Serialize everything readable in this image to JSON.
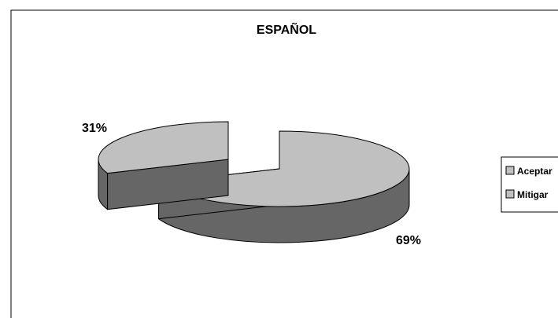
{
  "chart_data": {
    "type": "pie",
    "style": "3d-exploded",
    "title": "ESPAÑOL",
    "categories": [
      "Aceptar",
      "Mitigar"
    ],
    "values": [
      69,
      31
    ],
    "labels": [
      "69%",
      "31%"
    ],
    "legend_position": "right",
    "colors": {
      "top": "#c0c0c0",
      "side": "#666666",
      "outline": "#000000",
      "background": "#ffffff"
    }
  }
}
